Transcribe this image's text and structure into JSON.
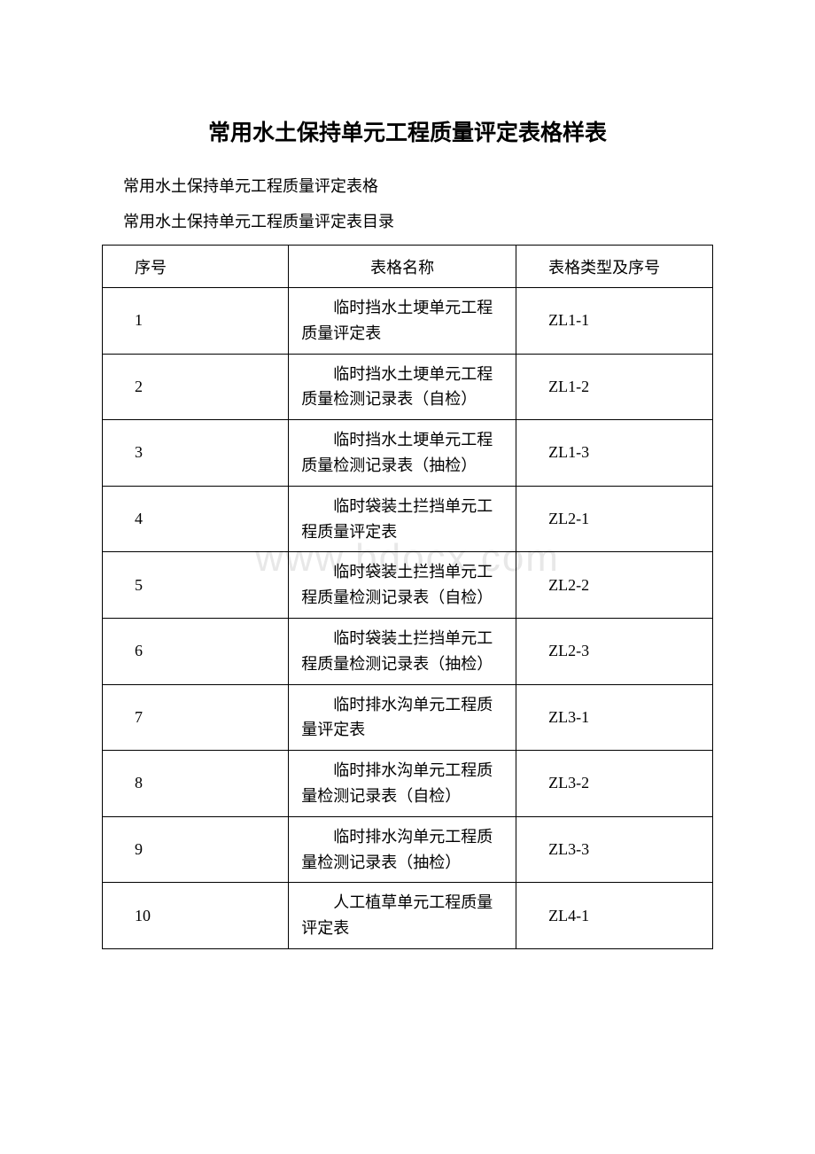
{
  "document": {
    "main_title": "常用水土保持单元工程质量评定表格样表",
    "subtitle1": "常用水土保持单元工程质量评定表格",
    "subtitle2": "常用水土保持单元工程质量评定表目录",
    "watermark_text": "www.bdocx.com",
    "watermark_color": "#e8e8e8",
    "background_color": "#ffffff",
    "text_color": "#000000",
    "border_color": "#000000",
    "table": {
      "headers": {
        "seq": "序号",
        "name": "表格名称",
        "type": "表格类型及序号"
      },
      "column_widths": {
        "seq": 180,
        "name": 220,
        "type": 190
      },
      "rows": [
        {
          "seq": "1",
          "name": "临时挡水土埂单元工程质量评定表",
          "type": "ZL1-1"
        },
        {
          "seq": "2",
          "name": "临时挡水土埂单元工程质量检测记录表（自检）",
          "type": "ZL1-2"
        },
        {
          "seq": "3",
          "name": "临时挡水土埂单元工程质量检测记录表（抽检）",
          "type": "ZL1-3"
        },
        {
          "seq": "4",
          "name": "临时袋装土拦挡单元工程质量评定表",
          "type": "ZL2-1"
        },
        {
          "seq": "5",
          "name": "临时袋装土拦挡单元工程质量检测记录表（自检）",
          "type": "ZL2-2"
        },
        {
          "seq": "6",
          "name": "临时袋装土拦挡单元工程质量检测记录表（抽检）",
          "type": "ZL2-3"
        },
        {
          "seq": "7",
          "name": "临时排水沟单元工程质量评定表",
          "type": "ZL3-1"
        },
        {
          "seq": "8",
          "name": "临时排水沟单元工程质量检测记录表（自检）",
          "type": "ZL3-2"
        },
        {
          "seq": "9",
          "name": "临时排水沟单元工程质量检测记录表（抽检）",
          "type": "ZL3-3"
        },
        {
          "seq": "10",
          "name": "人工植草单元工程质量评定表",
          "type": "ZL4-1"
        }
      ]
    },
    "typography": {
      "title_fontsize": 25,
      "title_fontweight": "bold",
      "subtitle_fontsize": 18,
      "cell_fontsize": 18,
      "font_family": "SimSun"
    }
  }
}
